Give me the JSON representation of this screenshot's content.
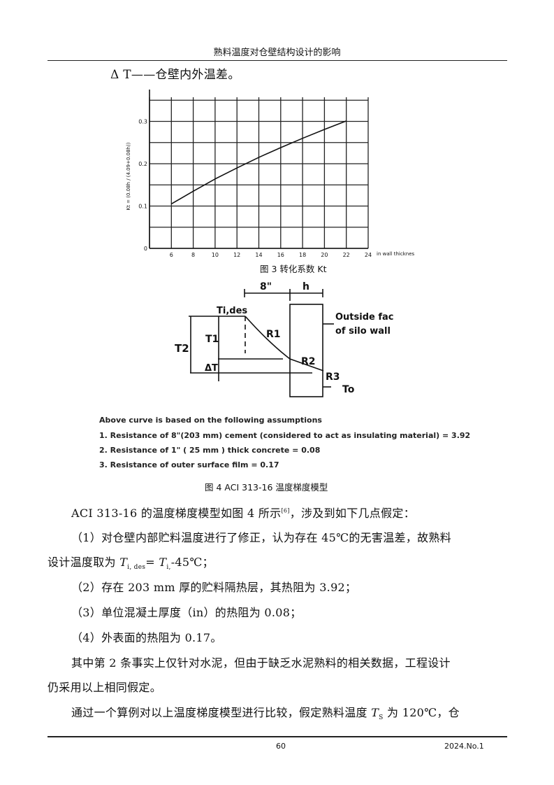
{
  "header": {
    "title": "熟料温度对仓壁结构设计的影响"
  },
  "intro_line": "Δ T——仓壁内外温差。",
  "figure3": {
    "caption": "图 3  转化系数 Kt",
    "chart_data": {
      "type": "line",
      "title": "",
      "ylabel": "Kt = (0.08h / (4.09+0.08h))",
      "xlabel": "in  wall thicknes",
      "xlim": [
        4,
        24
      ],
      "ylim": [
        0,
        0.357
      ],
      "x_ticks": [
        6,
        8,
        10,
        12,
        14,
        16,
        18,
        20,
        22,
        24
      ],
      "y_ticks": [
        0,
        0.1,
        0.2,
        0.3
      ],
      "grid": true,
      "series": [
        {
          "x": [
            6,
            8,
            10,
            12,
            14,
            16,
            18,
            20,
            22
          ],
          "y": [
            0.105,
            0.135,
            0.164,
            0.19,
            0.215,
            0.238,
            0.26,
            0.281,
            0.301
          ]
        }
      ]
    }
  },
  "figure4": {
    "labels": {
      "dim_8in": "8\"",
      "dim_h": "h",
      "t_ides": "Ti,des",
      "t1": "T1",
      "t2": "T2",
      "delta_t": "ΔT",
      "r1": "R1",
      "r2": "R2",
      "r3": "R3",
      "to": "To",
      "outside_face_1": "Outside fac",
      "outside_face_2": "of silo wall"
    },
    "assumptions_title": "Above curve is based on the following assumptions",
    "assumptions": [
      "1. Resistance of 8\"(203 mm) cement (considered to act as insulating material) = 3.92",
      "2. Resistance of 1\" ( 25 mm ) thick concrete = 0.08",
      "3. Resistance of outer surface film = 0.17"
    ],
    "caption": "图 4  ACI 313-16 温度梯度模型"
  },
  "paragraphs": {
    "p1_a": "ACI 313-16 的温度梯度模型如图 4 所示",
    "p1_ref": "[6]",
    "p1_b": "，涉及到如下几点假定：",
    "item1_a": "（1）对仓壁内部贮料温度进行了修正，认为存在 45℃的无害温差，故熟料",
    "item1_b": "设计温度取为 ",
    "item1_var1": "T",
    "item1_sub1": "i, des",
    "item1_eq": "=  ",
    "item1_var2": "T",
    "item1_sub2": "i,",
    "item1_end": "-45℃；",
    "item2": "（2）存在 203 mm 厚的贮料隔热层，其热阻为 3.92；",
    "item3": "（3）单位混凝土厚度（in）的热阻为 0.08；",
    "item4": "（4）外表面的热阻为 0.17。",
    "p2_a": "其中第 2 条事实上仅针对水泥，但由于缺乏水泥熟料的相关数据，工程设计",
    "p2_b": "仍采用以上相同假定。",
    "p3_a": "通过一个算例对以上温度梯度模型进行比较，假定熟料温度 ",
    "p3_var": "T",
    "p3_sub": "S",
    "p3_b": " 为 120℃，仓"
  },
  "footer": {
    "page": "60",
    "issue": "2024.No.1"
  }
}
